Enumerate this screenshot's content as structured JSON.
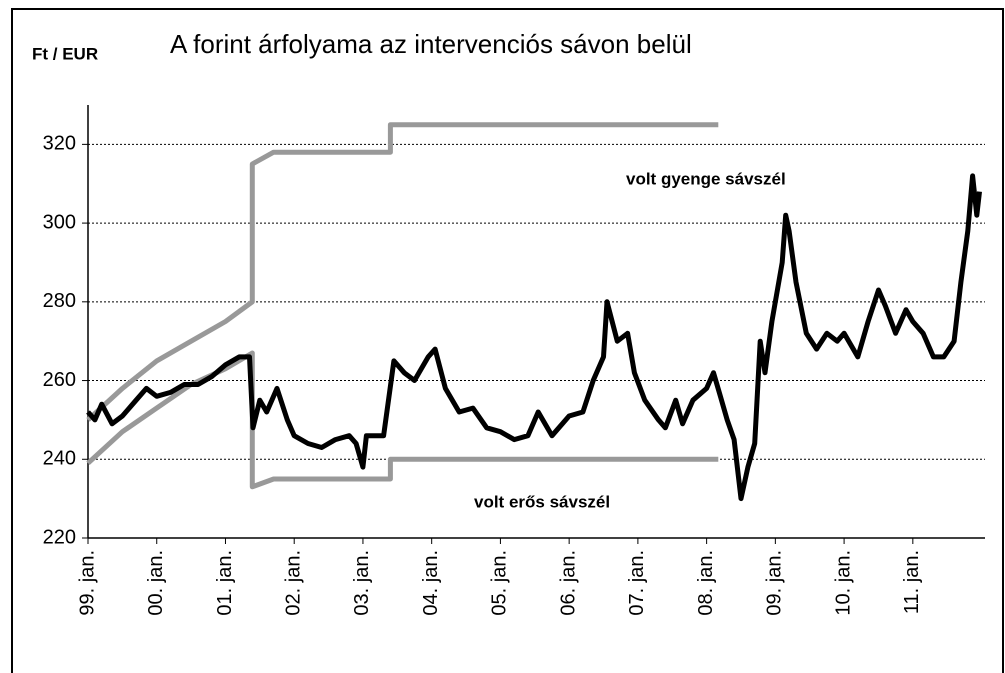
{
  "chart_data": {
    "type": "line",
    "title": "A forint árfolyama az intervenciós sávon belül",
    "y_label": "Ft / EUR",
    "annotations": [
      "volt gyenge sávszél",
      "volt erős sávszél"
    ],
    "xlim": [
      1999,
      2012.05
    ],
    "xticks": [
      {
        "value": 1999,
        "label": "99. jan."
      },
      {
        "value": 2000,
        "label": "00. jan."
      },
      {
        "value": 2001,
        "label": "01. jan."
      },
      {
        "value": 2002,
        "label": "02. jan."
      },
      {
        "value": 2003,
        "label": "03. jan."
      },
      {
        "value": 2004,
        "label": "04. jan."
      },
      {
        "value": 2005,
        "label": "05. jan."
      },
      {
        "value": 2006,
        "label": "06. jan."
      },
      {
        "value": 2007,
        "label": "07. jan."
      },
      {
        "value": 2008,
        "label": "08. jan."
      },
      {
        "value": 2009,
        "label": "09. jan."
      },
      {
        "value": 2010,
        "label": "10. jan."
      },
      {
        "value": 2011,
        "label": "11. jan."
      }
    ],
    "ylim": [
      220,
      330
    ],
    "yticks": [
      220,
      240,
      260,
      280,
      300,
      320
    ],
    "grid": true,
    "series": [
      {
        "color": "#999999",
        "x": [
          1999,
          1999.5,
          2000,
          2000.5,
          2001,
          2001.39,
          2001.39,
          2001.7,
          2003.4,
          2003.4,
          2008.17
        ],
        "values": [
          250,
          258,
          265,
          270,
          275,
          280,
          315,
          318,
          318,
          325,
          325
        ]
      },
      {
        "color": "#999999",
        "x": [
          1999,
          1999.5,
          2000,
          2000.5,
          2001,
          2001.39,
          2001.39,
          2001.7,
          2003.4,
          2003.4,
          2008.17
        ],
        "values": [
          239,
          247,
          253,
          259,
          263,
          267,
          233,
          235,
          235,
          240,
          240
        ]
      },
      {
        "color": "#000000",
        "x": [
          1999,
          1999.1,
          1999.2,
          1999.35,
          1999.5,
          1999.7,
          1999.85,
          2000,
          2000.2,
          2000.4,
          2000.6,
          2000.8,
          2001,
          2001.2,
          2001.35,
          2001.4,
          2001.5,
          2001.6,
          2001.75,
          2001.9,
          2002,
          2002.2,
          2002.4,
          2002.6,
          2002.8,
          2002.9,
          2003,
          2003.05,
          2003.3,
          2003.45,
          2003.6,
          2003.75,
          2003.95,
          2004.05,
          2004.2,
          2004.4,
          2004.6,
          2004.8,
          2005,
          2005.2,
          2005.4,
          2005.55,
          2005.75,
          2006,
          2006.2,
          2006.35,
          2006.5,
          2006.55,
          2006.7,
          2006.85,
          2006.95,
          2007.1,
          2007.3,
          2007.4,
          2007.55,
          2007.65,
          2007.8,
          2008,
          2008.1,
          2008.2,
          2008.3,
          2008.4,
          2008.5,
          2008.6,
          2008.7,
          2008.78,
          2008.85,
          2008.95,
          2009.1,
          2009.15,
          2009.2,
          2009.3,
          2009.45,
          2009.6,
          2009.75,
          2009.9,
          2010,
          2010.2,
          2010.35,
          2010.5,
          2010.6,
          2010.75,
          2010.9,
          2011,
          2011.15,
          2011.3,
          2011.45,
          2011.6,
          2011.7,
          2011.8,
          2011.87,
          2011.93,
          2011.97
        ],
        "values": [
          252,
          250,
          254,
          249,
          251,
          255,
          258,
          256,
          257,
          259,
          259,
          261,
          264,
          266,
          266,
          248,
          255,
          252,
          258,
          250,
          246,
          244,
          243,
          245,
          246,
          244,
          238,
          246,
          246,
          265,
          262,
          260,
          266,
          268,
          258,
          252,
          253,
          248,
          247,
          245,
          246,
          252,
          246,
          251,
          252,
          260,
          266,
          280,
          270,
          272,
          262,
          255,
          250,
          248,
          255,
          249,
          255,
          258,
          262,
          256,
          250,
          245,
          230,
          238,
          244,
          270,
          262,
          275,
          290,
          302,
          298,
          285,
          272,
          268,
          272,
          270,
          272,
          266,
          275,
          283,
          279,
          272,
          278,
          275,
          272,
          266,
          266,
          270,
          285,
          298,
          312,
          302,
          308
        ]
      }
    ]
  }
}
